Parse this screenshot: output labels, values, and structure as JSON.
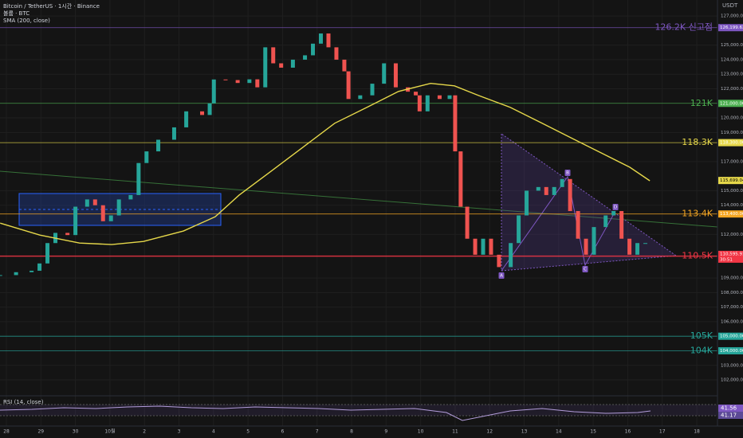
{
  "chart_data": {
    "type": "candlestick",
    "title": "Bitcoin / TetherUS · 1시간 · Binance",
    "volume_label": "볼륨 · BTC",
    "sma_label": "SMA (200, close)",
    "rsi_label": "RSI (14, close)",
    "rsi_value_labels": [
      "41.56",
      "41.17"
    ],
    "currency": "USDT",
    "countdown": "30:51",
    "pattern_points": [
      "A",
      "B",
      "C",
      "D"
    ],
    "up_color": "#26a69a",
    "down_color": "#ef5350",
    "x": [
      -0.18,
      0.28,
      0.73,
      0.96,
      1.19,
      1.42,
      1.77,
      2.0,
      2.34,
      2.57,
      2.8,
      3.03,
      3.26,
      3.6,
      3.83,
      4.06,
      4.4,
      4.86,
      5.21,
      5.67,
      5.89,
      6.01,
      6.35,
      6.7,
      7.04,
      7.27,
      7.5,
      7.73,
      7.96,
      8.3,
      8.65,
      8.88,
      9.11,
      9.33,
      9.56,
      9.79,
      9.91,
      10.25,
      10.6,
      10.94,
      11.28,
      11.63,
      11.86,
      11.97,
      12.2,
      12.55,
      12.84,
      13.0,
      13.16,
      13.35,
      13.58,
      13.81,
      14.04,
      14.27,
      14.61,
      14.84,
      15.07,
      15.41,
      15.64,
      15.87,
      16.1,
      16.33,
      16.56,
      16.79,
      17.02,
      17.36,
      17.59,
      17.82,
      18.05,
      18.28,
      18.51
    ],
    "series": [
      {
        "name": "Close",
        "values": [
          109200,
          109400,
          109500,
          110000,
          111400,
          112100,
          111950,
          113900,
          114400,
          114000,
          112900,
          113300,
          114400,
          114700,
          116900,
          117700,
          118500,
          119350,
          120450,
          120200,
          121000,
          122640,
          122600,
          122400,
          122650,
          122100,
          124850,
          123750,
          123450,
          124000,
          124300,
          125100,
          125800,
          124850,
          124000,
          123200,
          121300,
          121550,
          122350,
          123750,
          122100,
          121800,
          121550,
          120450,
          121550,
          121300,
          121550,
          117700,
          113900,
          111700,
          110600,
          111700,
          110600,
          109750,
          111400,
          113300,
          115000,
          115250,
          114700,
          115250,
          115800,
          113600,
          111700,
          110600,
          112500,
          113300,
          113600,
          111700,
          110600,
          111400,
          111400
        ]
      },
      {
        "name": "SMA",
        "color": "#e6d84a",
        "x": [
          -0.18,
          0.97,
          2.12,
          3.05,
          3.97,
          5.13,
          6.05,
          6.74,
          7.67,
          8.59,
          9.51,
          10.44,
          11.36,
          12.29,
          12.98,
          13.67,
          14.6,
          15.52,
          16.44,
          17.37,
          18.06,
          18.64
        ],
        "values": [
          112770,
          111950,
          111400,
          111300,
          111510,
          112230,
          113210,
          114690,
          116340,
          117980,
          119630,
          120720,
          121820,
          122370,
          122200,
          121550,
          120720,
          119630,
          118530,
          117430,
          116610,
          115680
        ]
      }
    ],
    "levels": [
      {
        "label": "126.2K 신고점",
        "value": 126199.63,
        "value_label": "126,199.63",
        "color": "#7e57c2"
      },
      {
        "label": "121K",
        "value": 121000,
        "value_label": "121,000.00",
        "color": "#4caf50"
      },
      {
        "label": "118.3K",
        "value": 118300,
        "value_label": "118,300.00",
        "color": "#e6d84a"
      },
      {
        "label": "113.4K",
        "value": 113400,
        "value_label": "113,400.00",
        "color": "#f5a623"
      },
      {
        "label": "110.5K",
        "value": 110500,
        "value_label": "110,500.00",
        "color": "#f23645"
      },
      {
        "label": "105K",
        "value": 105000,
        "value_label": "105,000.00",
        "color": "#26a69a"
      },
      {
        "label": "104K",
        "value": 104000,
        "value_label": "104,000.00",
        "color": "#26a69a"
      }
    ],
    "sma_last": {
      "value": 115699.04,
      "label": "115,699.04"
    },
    "last_price": {
      "value": 110595.91,
      "label": "110,595.91"
    },
    "xlim": [
      -0.185,
      20.6
    ],
    "ylim": [
      101400,
      128100
    ],
    "xticks": [
      {
        "value": 0,
        "label": "28"
      },
      {
        "value": 1,
        "label": "29"
      },
      {
        "value": 2,
        "label": "30"
      },
      {
        "value": 3,
        "label": "10월"
      },
      {
        "value": 4,
        "label": "2"
      },
      {
        "value": 5,
        "label": "3"
      },
      {
        "value": 6,
        "label": "4"
      },
      {
        "value": 7,
        "label": "5"
      },
      {
        "value": 8,
        "label": "6"
      },
      {
        "value": 9,
        "label": "7"
      },
      {
        "value": 10,
        "label": "8"
      },
      {
        "value": 11,
        "label": "9"
      },
      {
        "value": 12,
        "label": "10"
      },
      {
        "value": 13,
        "label": "11"
      },
      {
        "value": 14,
        "label": "12"
      },
      {
        "value": 15,
        "label": "13"
      },
      {
        "value": 16,
        "label": "14"
      },
      {
        "value": 17,
        "label": "15"
      },
      {
        "value": 18,
        "label": "16"
      },
      {
        "value": 19,
        "label": "17"
      },
      {
        "value": 20,
        "label": "18"
      }
    ],
    "yticks": [
      {
        "value": 127000,
        "label": "127,000.00"
      },
      {
        "value": 125000,
        "label": "125,000.00"
      },
      {
        "value": 124000,
        "label": "124,000.00"
      },
      {
        "value": 123000,
        "label": "123,000.00"
      },
      {
        "value": 122000,
        "label": "122,000.00"
      },
      {
        "value": 120000,
        "label": "120,000.00"
      },
      {
        "value": 119000,
        "label": "119,000.00"
      },
      {
        "value": 117000,
        "label": "117,000.00"
      },
      {
        "value": 115000,
        "label": "115,000.00"
      },
      {
        "value": 114000,
        "label": "114,000.00"
      },
      {
        "value": 112000,
        "label": "112,000.00"
      },
      {
        "value": 109000,
        "label": "109,000.00"
      },
      {
        "value": 108000,
        "label": "108,000.00"
      },
      {
        "value": 107000,
        "label": "107,000.00"
      },
      {
        "value": 106000,
        "label": "106,000.00"
      },
      {
        "value": 103000,
        "label": "103,000.00"
      },
      {
        "value": 102000,
        "label": "102,000.00"
      }
    ],
    "grid": true
  }
}
